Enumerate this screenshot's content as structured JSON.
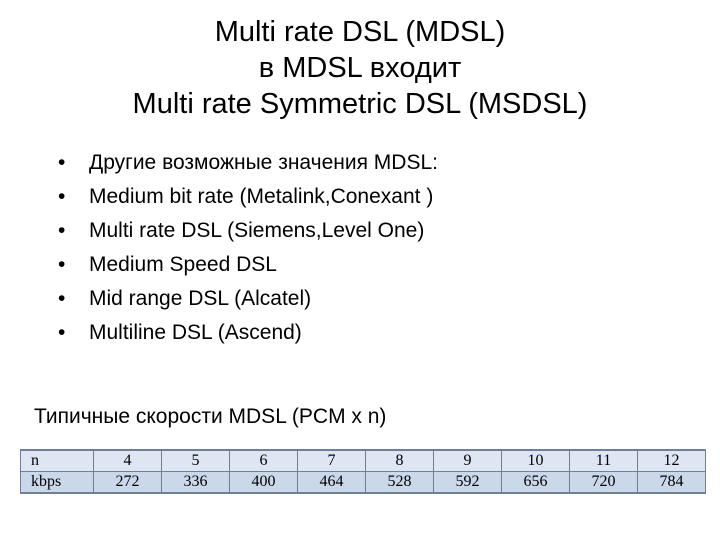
{
  "title": {
    "line1": "Multi rate DSL (MDSL)",
    "line2": "в MDSL входит",
    "line3": "Multi rate Symmetric DSL (MSDSL)"
  },
  "bullet_symbol": "•",
  "bullets": [
    "Другие возможные значения MDSL:",
    "Medium bit rate (Metalink,Conexant )",
    "Multi rate DSL (Siemens,Level One)",
    "Medium Speed DSL",
    "Mid range DSL (Alcatel)",
    "Multiline DSL (Ascend)"
  ],
  "subheading": "Типичные скорости MDSL (PCM x n)",
  "table": {
    "rows": [
      [
        "n",
        "4",
        "5",
        "6",
        "7",
        "8",
        "9",
        "10",
        "11",
        "12"
      ],
      [
        "kbps",
        "272",
        "336",
        "400",
        "464",
        "528",
        "592",
        "656",
        "720",
        "784"
      ]
    ]
  },
  "colors": {
    "table_row_top": "#dde6f2",
    "table_row_bottom": "#cbd8ea",
    "table_border": "#6f7f9a"
  }
}
